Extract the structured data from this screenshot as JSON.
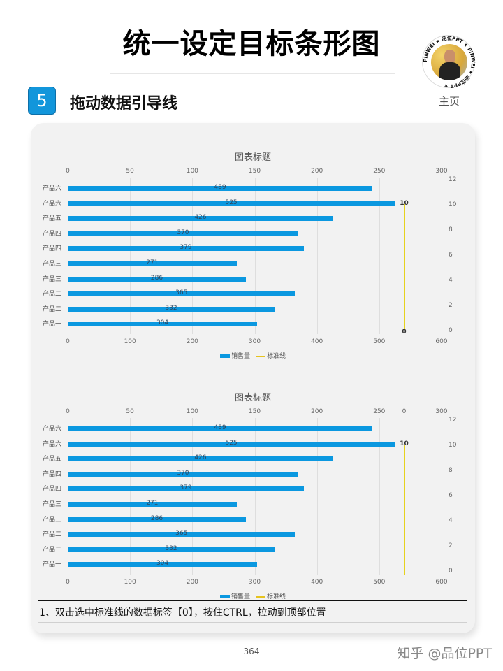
{
  "page": {
    "title": "统一设定目标条形图",
    "home_link": "主页",
    "avatar_ring_text": "PINWEI ★ 品位PPT ★ PINWEI ★ 品位PPT ★",
    "page_number": "364",
    "watermark": "知乎 @品位PPT"
  },
  "step": {
    "number": "5",
    "title": "拖动数据引导线"
  },
  "instruction": "1、双击选中标准线的数据标签【0】，按住CTRL，拉动到顶部位置",
  "colors": {
    "bar": "#0b98e0",
    "standard_line": "#e6d21e",
    "badge": "#1296db"
  },
  "chart_data": [
    {
      "type": "bar",
      "orientation": "horizontal",
      "title": "图表标题",
      "categories": [
        "产品六",
        "产品六",
        "产品五",
        "产品四",
        "产品四",
        "产品三",
        "产品三",
        "产品二",
        "产品二",
        "产品一"
      ],
      "series": [
        {
          "name": "销售量",
          "type": "bar",
          "values": [
            489,
            525,
            426,
            370,
            379,
            271,
            286,
            365,
            332,
            304
          ]
        },
        {
          "name": "标准线",
          "type": "line",
          "x": 540,
          "y_start": 0,
          "y_end": 10,
          "labels": {
            "top": "10",
            "bottom": "0"
          }
        }
      ],
      "top_axis": {
        "ticks": [
          "0",
          "50",
          "100",
          "150",
          "200",
          "250",
          "300"
        ],
        "range": [
          0,
          300
        ]
      },
      "bottom_axis": {
        "ticks": [
          "0",
          "100",
          "200",
          "300",
          "400",
          "500",
          "600"
        ],
        "range": [
          0,
          600
        ]
      },
      "right_axis": {
        "ticks": [
          "12",
          "10",
          "8",
          "6",
          "4",
          "2",
          "0"
        ],
        "range": [
          0,
          12
        ]
      },
      "legend": [
        "销售量",
        "标准线"
      ],
      "legend_position": "bottom",
      "grid": true
    },
    {
      "type": "bar",
      "orientation": "horizontal",
      "title": "图表标题",
      "categories": [
        "产品六",
        "产品六",
        "产品五",
        "产品四",
        "产品四",
        "产品三",
        "产品三",
        "产品二",
        "产品二",
        "产品一"
      ],
      "series": [
        {
          "name": "销售量",
          "type": "bar",
          "values": [
            489,
            525,
            426,
            370,
            379,
            271,
            286,
            365,
            332,
            304
          ]
        },
        {
          "name": "标准线",
          "type": "line",
          "x": 540,
          "y_start": 0,
          "y_end": 10,
          "labels": {
            "top": "0",
            "middle": "10"
          }
        }
      ],
      "top_axis": {
        "ticks": [
          "0",
          "50",
          "100",
          "150",
          "200",
          "250",
          "300"
        ],
        "range": [
          0,
          300
        ]
      },
      "bottom_axis": {
        "ticks": [
          "0",
          "100",
          "200",
          "300",
          "400",
          "500",
          "600"
        ],
        "range": [
          0,
          600
        ]
      },
      "right_axis": {
        "ticks": [
          "12",
          "10",
          "8",
          "6",
          "4",
          "2",
          "0"
        ],
        "range": [
          0,
          12
        ]
      },
      "legend": [
        "销售量",
        "标准线"
      ],
      "legend_position": "bottom",
      "grid": true
    }
  ]
}
